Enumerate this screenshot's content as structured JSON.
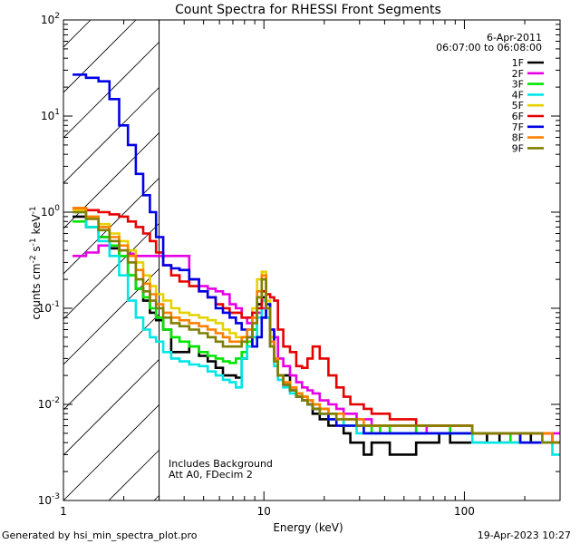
{
  "chart_data": {
    "type": "line",
    "title": "Count Spectra for RHESSI Front Segments",
    "xlabel": "Energy (keV)",
    "ylabel_parts": {
      "base": "counts cm",
      "exp1": "-2",
      "mid1": " s",
      "exp2": "-1",
      "mid2": " keV",
      "exp3": "-1"
    },
    "xscale": "log",
    "yscale": "log",
    "xlim": [
      1,
      300
    ],
    "ylim": [
      0.001,
      100
    ],
    "xticks": [
      {
        "value": 1,
        "label": "1"
      },
      {
        "value": 10,
        "label": "10"
      },
      {
        "value": 100,
        "label": "100"
      }
    ],
    "yticks": [
      {
        "value": 0.001,
        "base": "10",
        "exp": "-3"
      },
      {
        "value": 0.01,
        "base": "10",
        "exp": "-2"
      },
      {
        "value": 0.1,
        "base": "10",
        "exp": "-1"
      },
      {
        "value": 1,
        "base": "10",
        "exp": "0"
      },
      {
        "value": 10,
        "base": "10",
        "exp": "1"
      },
      {
        "value": 100,
        "base": "10",
        "exp": "2"
      }
    ],
    "hatch_region": {
      "x_range": [
        1,
        3
      ],
      "description": "attenuator/low-energy excluded"
    },
    "date": "6-Apr-2011",
    "time_range": "06:07:00 to 06:08:00",
    "annotations": [
      "Includes Background",
      "Att A0, FDecim 2"
    ],
    "legend_position": "top-right",
    "series": [
      {
        "name": "1F",
        "color": "#000000",
        "x": [
          1.2,
          1.4,
          1.6,
          1.8,
          2.0,
          2.2,
          2.4,
          2.6,
          2.8,
          3.0,
          3.3,
          3.6,
          4.0,
          4.5,
          5.0,
          5.5,
          6.0,
          6.5,
          7.0,
          7.5,
          8.0,
          8.5,
          9.0,
          9.5,
          10.0,
          10.5,
          11.0,
          11.5,
          12,
          13,
          14,
          15,
          16,
          17,
          18,
          20,
          22,
          24,
          26,
          28,
          30,
          33,
          36,
          40,
          45,
          50,
          55,
          60,
          70,
          80,
          90,
          100,
          120,
          140,
          160,
          180,
          200,
          230,
          260,
          290
        ],
        "y": [
          0.9,
          0.7,
          0.55,
          0.42,
          0.35,
          0.22,
          0.16,
          0.12,
          0.09,
          0.075,
          0.06,
          0.035,
          0.035,
          0.04,
          0.032,
          0.028,
          0.024,
          0.02,
          0.02,
          0.019,
          0.03,
          0.04,
          0.06,
          0.11,
          0.13,
          0.08,
          0.04,
          0.03,
          0.02,
          0.02,
          0.015,
          0.013,
          0.012,
          0.01,
          0.008,
          0.007,
          0.006,
          0.006,
          0.005,
          0.004,
          0.004,
          0.003,
          0.004,
          0.004,
          0.003,
          0.003,
          0.003,
          0.004,
          0.004,
          0.005,
          0.004,
          0.004,
          0.004,
          0.005,
          0.004,
          0.004,
          0.005,
          0.004,
          0.004,
          0.004
        ]
      },
      {
        "name": "2F",
        "color": "#e600e6",
        "x": [
          1.2,
          1.4,
          1.6,
          1.8,
          2.0,
          2.2,
          2.4,
          2.6,
          2.8,
          3.0,
          3.3,
          3.6,
          4.0,
          4.5,
          5.0,
          5.5,
          6.0,
          6.5,
          7.0,
          7.5,
          8.0,
          8.5,
          9.0,
          9.5,
          10.0,
          10.5,
          11.0,
          11.5,
          12,
          13,
          14,
          15,
          16,
          17,
          18,
          20,
          22,
          24,
          26,
          28,
          30,
          33,
          36,
          40,
          45,
          50,
          55,
          60,
          70,
          80,
          90,
          100,
          120,
          140,
          160,
          180,
          200,
          230,
          260,
          290
        ],
        "y": [
          0.35,
          0.38,
          0.45,
          0.45,
          0.4,
          0.37,
          0.35,
          0.35,
          0.35,
          0.35,
          0.35,
          0.35,
          0.35,
          0.2,
          0.17,
          0.16,
          0.15,
          0.14,
          0.11,
          0.1,
          0.08,
          0.07,
          0.08,
          0.09,
          0.1,
          0.08,
          0.06,
          0.05,
          0.03,
          0.025,
          0.02,
          0.017,
          0.015,
          0.014,
          0.013,
          0.011,
          0.01,
          0.009,
          0.008,
          0.008,
          0.007,
          0.007,
          0.006,
          0.006,
          0.006,
          0.006,
          0.006,
          0.005,
          0.006,
          0.006,
          0.006,
          0.006,
          0.005,
          0.005,
          0.005,
          0.005,
          0.005,
          0.005,
          0.005,
          0.005
        ]
      },
      {
        "name": "3F",
        "color": "#00e600",
        "x": [
          1.2,
          1.4,
          1.6,
          1.8,
          2.0,
          2.2,
          2.4,
          2.6,
          2.8,
          3.0,
          3.3,
          3.6,
          4.0,
          4.5,
          5.0,
          5.5,
          6.0,
          6.5,
          7.0,
          7.5,
          8.0,
          8.5,
          9.0,
          9.5,
          10.0,
          10.5,
          11.0,
          11.5,
          12,
          13,
          14,
          15,
          16,
          17,
          18,
          20,
          22,
          24,
          26,
          28,
          30,
          33,
          36,
          40,
          45,
          50,
          55,
          60,
          70,
          80,
          90,
          100,
          120,
          140,
          160,
          180,
          200,
          230,
          260,
          290
        ],
        "y": [
          0.8,
          0.7,
          0.55,
          0.45,
          0.35,
          0.22,
          0.16,
          0.13,
          0.1,
          0.08,
          0.06,
          0.05,
          0.045,
          0.04,
          0.035,
          0.032,
          0.03,
          0.028,
          0.027,
          0.03,
          0.035,
          0.045,
          0.06,
          0.1,
          0.15,
          0.1,
          0.05,
          0.03,
          0.02,
          0.017,
          0.014,
          0.013,
          0.012,
          0.011,
          0.01,
          0.009,
          0.008,
          0.007,
          0.006,
          0.006,
          0.006,
          0.006,
          0.005,
          0.006,
          0.005,
          0.005,
          0.005,
          0.006,
          0.006,
          0.006,
          0.005,
          0.005,
          0.005,
          0.005,
          0.005,
          0.004,
          0.004,
          0.004,
          0.004,
          0.004
        ]
      },
      {
        "name": "4F",
        "color": "#00e6e6",
        "x": [
          1.2,
          1.4,
          1.6,
          1.8,
          2.0,
          2.2,
          2.4,
          2.6,
          2.8,
          3.0,
          3.3,
          3.6,
          4.0,
          4.5,
          5.0,
          5.5,
          6.0,
          6.5,
          7.0,
          7.5,
          8.0,
          8.5,
          9.0,
          9.5,
          10.0,
          10.5,
          11.0,
          11.5,
          12,
          13,
          14,
          15,
          16,
          17,
          18,
          20,
          22,
          24,
          26,
          28,
          30,
          33,
          36,
          40,
          45,
          50,
          55,
          60,
          70,
          80,
          90,
          100,
          120,
          140,
          160,
          180,
          200,
          230,
          260,
          290
        ],
        "y": [
          1.0,
          0.7,
          0.5,
          0.35,
          0.22,
          0.12,
          0.08,
          0.06,
          0.05,
          0.045,
          0.035,
          0.03,
          0.028,
          0.026,
          0.025,
          0.022,
          0.02,
          0.018,
          0.017,
          0.015,
          0.03,
          0.04,
          0.05,
          0.08,
          0.12,
          0.08,
          0.04,
          0.025,
          0.018,
          0.015,
          0.013,
          0.012,
          0.011,
          0.01,
          0.009,
          0.008,
          0.007,
          0.007,
          0.006,
          0.006,
          0.005,
          0.005,
          0.005,
          0.005,
          0.005,
          0.005,
          0.005,
          0.005,
          0.005,
          0.005,
          0.005,
          0.005,
          0.004,
          0.004,
          0.004,
          0.004,
          0.004,
          0.004,
          0.004,
          0.003
        ]
      },
      {
        "name": "5F",
        "color": "#e6d200",
        "x": [
          1.2,
          1.4,
          1.6,
          1.8,
          2.0,
          2.2,
          2.4,
          2.6,
          2.8,
          3.0,
          3.3,
          3.6,
          4.0,
          4.5,
          5.0,
          5.5,
          6.0,
          6.5,
          7.0,
          7.5,
          8.0,
          8.5,
          9.0,
          9.5,
          10.0,
          10.5,
          11.0,
          11.5,
          12,
          13,
          14,
          15,
          16,
          17,
          18,
          20,
          22,
          24,
          26,
          28,
          30,
          33,
          36,
          40,
          45,
          50,
          55,
          60,
          70,
          80,
          90,
          100,
          120,
          140,
          160,
          180,
          200,
          230,
          260,
          290
        ],
        "y": [
          1.05,
          0.9,
          0.75,
          0.6,
          0.5,
          0.4,
          0.3,
          0.22,
          0.17,
          0.14,
          0.12,
          0.1,
          0.09,
          0.085,
          0.08,
          0.075,
          0.07,
          0.06,
          0.055,
          0.05,
          0.05,
          0.06,
          0.1,
          0.2,
          0.24,
          0.12,
          0.05,
          0.03,
          0.02,
          0.017,
          0.015,
          0.013,
          0.012,
          0.011,
          0.01,
          0.009,
          0.008,
          0.007,
          0.007,
          0.007,
          0.006,
          0.006,
          0.006,
          0.006,
          0.006,
          0.006,
          0.006,
          0.006,
          0.006,
          0.006,
          0.006,
          0.006,
          0.005,
          0.005,
          0.005,
          0.005,
          0.005,
          0.005,
          0.005,
          0.004
        ]
      },
      {
        "name": "6F",
        "color": "#e60000",
        "x": [
          1.2,
          1.4,
          1.6,
          1.8,
          2.0,
          2.2,
          2.4,
          2.6,
          2.8,
          3.0,
          3.3,
          3.6,
          4.0,
          4.5,
          5.0,
          5.5,
          6.0,
          6.5,
          7.0,
          7.5,
          8.0,
          8.5,
          9.0,
          9.5,
          10.0,
          10.5,
          11.0,
          11.5,
          12,
          13,
          14,
          15,
          16,
          17,
          18,
          20,
          22,
          24,
          26,
          28,
          30,
          33,
          36,
          40,
          45,
          50,
          55,
          60,
          70,
          80,
          90,
          100,
          120,
          140,
          160,
          180,
          200,
          230,
          260,
          290
        ],
        "y": [
          1.1,
          1.05,
          1.0,
          0.95,
          0.9,
          0.8,
          0.7,
          0.6,
          0.5,
          0.38,
          0.28,
          0.22,
          0.19,
          0.17,
          0.15,
          0.13,
          0.11,
          0.1,
          0.09,
          0.09,
          0.08,
          0.08,
          0.09,
          0.1,
          0.15,
          0.14,
          0.13,
          0.12,
          0.06,
          0.04,
          0.035,
          0.025,
          0.024,
          0.03,
          0.04,
          0.03,
          0.02,
          0.015,
          0.012,
          0.01,
          0.01,
          0.009,
          0.008,
          0.008,
          0.007,
          0.007,
          0.007,
          0.006,
          0.006,
          0.006,
          0.006,
          0.006,
          0.005,
          0.005,
          0.005,
          0.005,
          0.005,
          0.005,
          0.005,
          0.004
        ]
      },
      {
        "name": "7F",
        "color": "#0000e6",
        "x": [
          1.2,
          1.4,
          1.6,
          1.8,
          2.0,
          2.2,
          2.4,
          2.6,
          2.8,
          3.0,
          3.3,
          3.6,
          4.0,
          4.5,
          5.0,
          5.5,
          6.0,
          6.5,
          7.0,
          7.5,
          8.0,
          8.5,
          9.0,
          9.5,
          10.0,
          10.5,
          11.0,
          11.5,
          12,
          13,
          14,
          15,
          16,
          17,
          18,
          20,
          22,
          24,
          26,
          28,
          30,
          33,
          36,
          40,
          45,
          50,
          55,
          60,
          70,
          80,
          90,
          100,
          120,
          140,
          160,
          180,
          200,
          230,
          260,
          290
        ],
        "y": [
          27,
          25,
          23,
          15,
          8,
          5,
          2.5,
          1.5,
          1.0,
          0.55,
          0.28,
          0.26,
          0.25,
          0.2,
          0.15,
          0.13,
          0.1,
          0.09,
          0.08,
          0.07,
          0.06,
          0.05,
          0.04,
          0.05,
          0.08,
          0.11,
          0.06,
          0.03,
          0.02,
          0.016,
          0.014,
          0.012,
          0.011,
          0.01,
          0.009,
          0.008,
          0.007,
          0.006,
          0.006,
          0.006,
          0.006,
          0.005,
          0.005,
          0.005,
          0.005,
          0.005,
          0.005,
          0.005,
          0.005,
          0.005,
          0.005,
          0.005,
          0.005,
          0.005,
          0.005,
          0.005,
          0.004,
          0.004,
          0.004,
          0.004
        ]
      },
      {
        "name": "8F",
        "color": "#ff8000",
        "x": [
          1.2,
          1.4,
          1.6,
          1.8,
          2.0,
          2.2,
          2.4,
          2.6,
          2.8,
          3.0,
          3.3,
          3.6,
          4.0,
          4.5,
          5.0,
          5.5,
          6.0,
          6.5,
          7.0,
          7.5,
          8.0,
          8.5,
          9.0,
          9.5,
          10.0,
          10.5,
          11.0,
          11.5,
          12,
          13,
          14,
          15,
          16,
          17,
          18,
          20,
          22,
          24,
          26,
          28,
          30,
          33,
          36,
          40,
          45,
          50,
          55,
          60,
          70,
          80,
          90,
          100,
          120,
          140,
          160,
          180,
          200,
          230,
          260,
          290
        ],
        "y": [
          1.1,
          0.9,
          0.7,
          0.55,
          0.45,
          0.35,
          0.25,
          0.18,
          0.14,
          0.11,
          0.09,
          0.08,
          0.075,
          0.07,
          0.065,
          0.06,
          0.055,
          0.05,
          0.045,
          0.045,
          0.05,
          0.06,
          0.08,
          0.15,
          0.22,
          0.1,
          0.045,
          0.03,
          0.02,
          0.017,
          0.015,
          0.013,
          0.012,
          0.011,
          0.01,
          0.009,
          0.008,
          0.008,
          0.007,
          0.007,
          0.007,
          0.006,
          0.006,
          0.006,
          0.006,
          0.006,
          0.006,
          0.006,
          0.006,
          0.006,
          0.006,
          0.006,
          0.005,
          0.005,
          0.005,
          0.005,
          0.005,
          0.005,
          0.005,
          0.004
        ]
      },
      {
        "name": "9F",
        "color": "#808000",
        "x": [
          1.2,
          1.4,
          1.6,
          1.8,
          2.0,
          2.2,
          2.4,
          2.6,
          2.8,
          3.0,
          3.3,
          3.6,
          4.0,
          4.5,
          5.0,
          5.5,
          6.0,
          6.5,
          7.0,
          7.5,
          8.0,
          8.5,
          9.0,
          9.5,
          10.0,
          10.5,
          11.0,
          11.5,
          12,
          13,
          14,
          15,
          16,
          17,
          18,
          20,
          22,
          24,
          26,
          28,
          30,
          33,
          36,
          40,
          45,
          50,
          55,
          60,
          70,
          80,
          90,
          100,
          120,
          140,
          160,
          180,
          200,
          230,
          260,
          290
        ],
        "y": [
          1.0,
          0.85,
          0.65,
          0.5,
          0.4,
          0.3,
          0.2,
          0.15,
          0.12,
          0.1,
          0.08,
          0.07,
          0.065,
          0.06,
          0.055,
          0.05,
          0.045,
          0.04,
          0.04,
          0.04,
          0.045,
          0.05,
          0.07,
          0.13,
          0.2,
          0.1,
          0.04,
          0.028,
          0.02,
          0.016,
          0.014,
          0.012,
          0.011,
          0.01,
          0.009,
          0.008,
          0.008,
          0.007,
          0.007,
          0.007,
          0.006,
          0.006,
          0.006,
          0.006,
          0.006,
          0.006,
          0.006,
          0.006,
          0.006,
          0.006,
          0.006,
          0.006,
          0.005,
          0.005,
          0.005,
          0.005,
          0.005,
          0.005,
          0.004,
          0.004
        ]
      }
    ]
  },
  "footer": {
    "generated_by": "Generated by hsi_min_spectra_plot.pro",
    "timestamp": "19-Apr-2023 10:27"
  }
}
